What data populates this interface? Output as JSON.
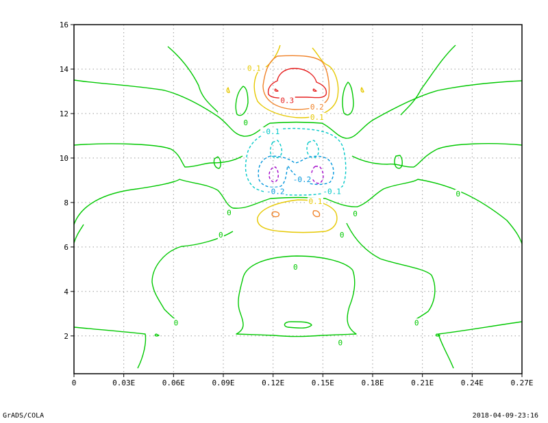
{
  "chart_data": {
    "type": "contour",
    "xlim": [
      0,
      0.27
    ],
    "ylim": [
      0.3,
      16
    ],
    "x_ticks": [
      {
        "value": 0,
        "label": "0"
      },
      {
        "value": 0.03,
        "label": "0.03E"
      },
      {
        "value": 0.06,
        "label": "0.06E"
      },
      {
        "value": 0.09,
        "label": "0.09E"
      },
      {
        "value": 0.12,
        "label": "0.12E"
      },
      {
        "value": 0.15,
        "label": "0.15E"
      },
      {
        "value": 0.18,
        "label": "0.18E"
      },
      {
        "value": 0.21,
        "label": "0.21E"
      },
      {
        "value": 0.24,
        "label": "0.24E"
      },
      {
        "value": 0.27,
        "label": "0.27E"
      }
    ],
    "y_ticks": [
      {
        "value": 2,
        "label": "2"
      },
      {
        "value": 4,
        "label": "4"
      },
      {
        "value": 6,
        "label": "6"
      },
      {
        "value": 8,
        "label": "8"
      },
      {
        "value": 10,
        "label": "10"
      },
      {
        "value": 12,
        "label": "12"
      },
      {
        "value": 14,
        "label": "14"
      },
      {
        "value": 16,
        "label": "16"
      }
    ],
    "grid": true,
    "grid_style": "dotted",
    "contour_levels": [
      {
        "value": -0.3,
        "color": "#a000c8",
        "dashed": true
      },
      {
        "value": -0.2,
        "color": "#0096dc",
        "dashed": true
      },
      {
        "value": -0.1,
        "color": "#00c8c8",
        "dashed": true
      },
      {
        "value": 0,
        "color": "#00c800",
        "dashed": false
      },
      {
        "value": 0.1,
        "color": "#e6c800",
        "dashed": false
      },
      {
        "value": 0.2,
        "color": "#f08228",
        "dashed": false
      },
      {
        "value": 0.3,
        "color": "#e61e1e",
        "dashed": false
      }
    ],
    "contour_labels": [
      {
        "text": "0.1",
        "x": 0.1085,
        "y": 14.05,
        "color": "#e6c800"
      },
      {
        "text": "0.3",
        "x": 0.1285,
        "y": 12.6,
        "color": "#e61e1e"
      },
      {
        "text": "0.2",
        "x": 0.1465,
        "y": 12.3,
        "color": "#f08228"
      },
      {
        "text": "0.1",
        "x": 0.1465,
        "y": 11.85,
        "color": "#e6c800"
      },
      {
        "text": "0",
        "x": 0.1035,
        "y": 11.6,
        "color": "#00c800"
      },
      {
        "text": "-0.1",
        "x": 0.1185,
        "y": 11.2,
        "color": "#00c8c8"
      },
      {
        "text": "-0.2",
        "x": 0.1375,
        "y": 9.05,
        "color": "#0096dc"
      },
      {
        "text": "-0.2",
        "x": 0.1215,
        "y": 8.5,
        "color": "#0096dc"
      },
      {
        "text": "-0.1",
        "x": 0.1555,
        "y": 8.5,
        "color": "#00c8c8"
      },
      {
        "text": "0.1",
        "x": 0.1455,
        "y": 8.05,
        "color": "#e6c800"
      },
      {
        "text": "0",
        "x": 0.0935,
        "y": 7.55,
        "color": "#00c800"
      },
      {
        "text": "0",
        "x": 0.1695,
        "y": 7.5,
        "color": "#00c800"
      },
      {
        "text": "0",
        "x": 0.1615,
        "y": 6.55,
        "color": "#00c800"
      },
      {
        "text": "0",
        "x": 0.0885,
        "y": 6.55,
        "color": "#00c800"
      },
      {
        "text": "0",
        "x": 0.2315,
        "y": 8.4,
        "color": "#00c800"
      },
      {
        "text": "0",
        "x": 0.1335,
        "y": 5.1,
        "color": "#00c800"
      },
      {
        "text": "0",
        "x": 0.0615,
        "y": 2.6,
        "color": "#00c800"
      },
      {
        "text": "0",
        "x": 0.2065,
        "y": 2.6,
        "color": "#00c800"
      },
      {
        "text": "0",
        "x": 0.1605,
        "y": 1.7,
        "color": "#00c800"
      }
    ]
  },
  "footer": {
    "left": "GrADS/COLA",
    "right": "2018-04-09-23:16"
  }
}
